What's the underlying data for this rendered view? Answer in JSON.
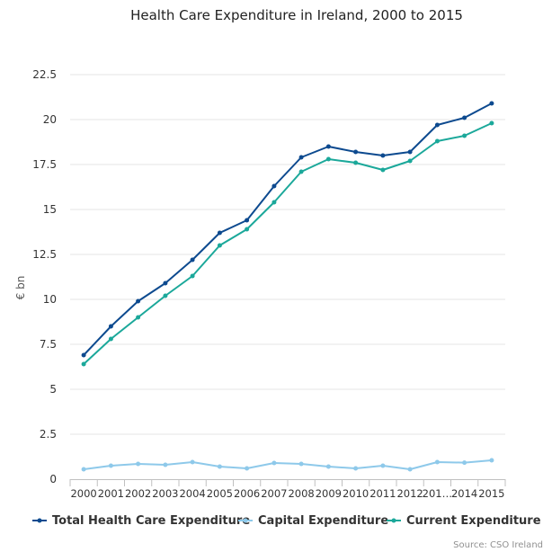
{
  "chart_data": {
    "type": "line",
    "title": "Health Care Expenditure in Ireland, 2000 to 2015",
    "ylabel": "€ bn",
    "xlabel": "",
    "ylim": [
      0,
      22.5
    ],
    "yticks": [
      "0",
      "2.5",
      "5",
      "7.5",
      "10",
      "12.5",
      "15",
      "17.5",
      "20",
      "22.5"
    ],
    "yticks_values": [
      0,
      2.5,
      5,
      7.5,
      10,
      12.5,
      15,
      17.5,
      20,
      22.5
    ],
    "categories": [
      "2000",
      "2001",
      "2002",
      "2003",
      "2004",
      "2005",
      "2006",
      "2007",
      "2008",
      "2009",
      "2010",
      "2011",
      "2012",
      "201…",
      "2014",
      "2015"
    ],
    "grid": true,
    "legend_position": "bottom",
    "series": [
      {
        "name": "Total Health Care Expenditure",
        "color": "#0d4a8f",
        "values": [
          6.9,
          8.5,
          9.9,
          10.9,
          12.2,
          13.7,
          14.4,
          16.3,
          17.9,
          18.5,
          18.2,
          18.0,
          18.2,
          19.7,
          20.1,
          20.9
        ]
      },
      {
        "name": "Capital Expenditure",
        "color": "#8ec9ea",
        "values": [
          0.55,
          0.75,
          0.85,
          0.8,
          0.95,
          0.7,
          0.6,
          0.9,
          0.85,
          0.7,
          0.6,
          0.75,
          0.55,
          0.95,
          0.92,
          1.05
        ]
      },
      {
        "name": "Current Expenditure",
        "color": "#1ba89a",
        "values": [
          6.4,
          7.8,
          9.0,
          10.2,
          11.3,
          13.0,
          13.9,
          15.4,
          17.1,
          17.8,
          17.6,
          17.2,
          17.7,
          18.8,
          19.1,
          19.8
        ]
      }
    ],
    "credit": "Source: CSO Ireland"
  }
}
